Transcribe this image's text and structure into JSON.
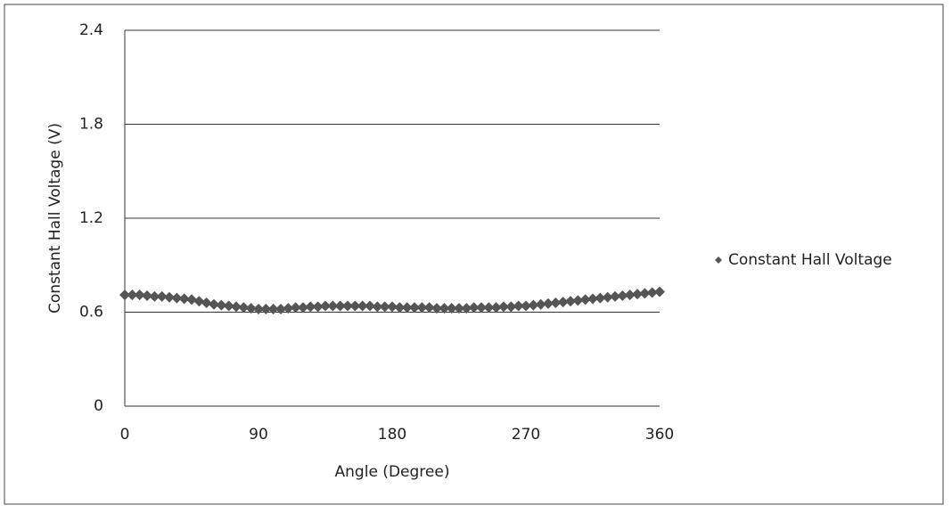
{
  "chart_data": {
    "type": "scatter",
    "x_label": "Angle (Degree)",
    "y_label": "Constant Hall Voltage (V)",
    "xlim": [
      0,
      360
    ],
    "xticks": [
      0,
      90,
      180,
      270,
      360
    ],
    "ylim": [
      0,
      2.4
    ],
    "yticks": [
      0,
      0.6,
      1.2,
      1.8,
      2.4
    ],
    "grid": true,
    "legend": "right",
    "series": [
      {
        "name": "Constant Hall Voltage",
        "color": "#555555",
        "x": [
          0,
          5,
          10,
          15,
          20,
          25,
          30,
          35,
          40,
          45,
          50,
          55,
          60,
          65,
          70,
          75,
          80,
          85,
          90,
          95,
          100,
          105,
          110,
          115,
          120,
          125,
          130,
          135,
          140,
          145,
          150,
          155,
          160,
          165,
          170,
          175,
          180,
          185,
          190,
          195,
          200,
          205,
          210,
          215,
          220,
          225,
          230,
          235,
          240,
          245,
          250,
          255,
          260,
          265,
          270,
          275,
          280,
          285,
          290,
          295,
          300,
          305,
          310,
          315,
          320,
          325,
          330,
          335,
          340,
          345,
          350,
          355,
          360
        ],
        "values": [
          0.71,
          0.71,
          0.71,
          0.705,
          0.7,
          0.7,
          0.695,
          0.69,
          0.685,
          0.68,
          0.67,
          0.66,
          0.65,
          0.645,
          0.64,
          0.635,
          0.63,
          0.625,
          0.62,
          0.62,
          0.62,
          0.62,
          0.625,
          0.63,
          0.63,
          0.635,
          0.635,
          0.64,
          0.64,
          0.64,
          0.64,
          0.64,
          0.64,
          0.64,
          0.635,
          0.635,
          0.635,
          0.63,
          0.63,
          0.63,
          0.63,
          0.63,
          0.625,
          0.625,
          0.625,
          0.625,
          0.625,
          0.63,
          0.63,
          0.63,
          0.63,
          0.635,
          0.635,
          0.64,
          0.64,
          0.645,
          0.65,
          0.655,
          0.66,
          0.665,
          0.67,
          0.675,
          0.68,
          0.685,
          0.69,
          0.695,
          0.7,
          0.705,
          0.71,
          0.715,
          0.72,
          0.725,
          0.73
        ]
      }
    ]
  }
}
